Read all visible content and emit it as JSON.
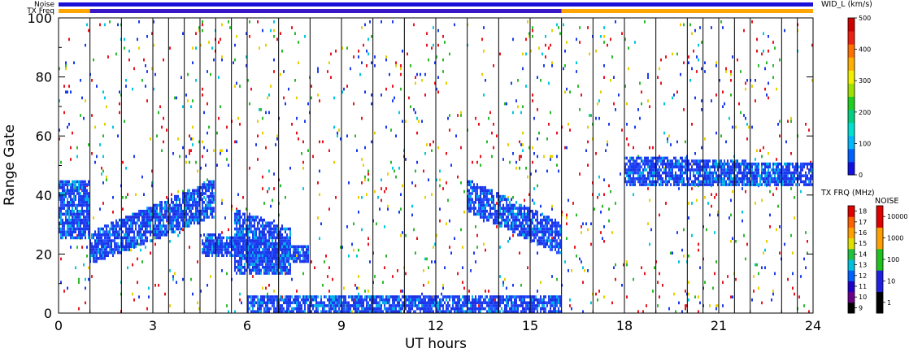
{
  "chart_data": {
    "type": "heatmap",
    "xlabel": "UT hours",
    "ylabel": "Range Gate",
    "xlim": [
      0,
      24
    ],
    "ylim": [
      0,
      100
    ],
    "x_ticks": [
      "0",
      "3",
      "6",
      "9",
      "12",
      "15",
      "18",
      "21",
      "24"
    ],
    "x_tick_values": [
      0,
      3,
      6,
      9,
      12,
      15,
      18,
      21,
      24
    ],
    "y_ticks": [
      "0",
      "20",
      "40",
      "60",
      "80",
      "100"
    ],
    "y_tick_values": [
      0,
      20,
      40,
      60,
      80,
      100
    ],
    "top_bars": {
      "noise_label": "Noise",
      "txfreq_label": "TX Freq",
      "noise_color": "#1a10d8",
      "txfreq_segments": [
        {
          "start": 0,
          "end": 1,
          "color": "#ffa500"
        },
        {
          "start": 1,
          "end": 16,
          "color": "#3a16c8"
        },
        {
          "start": 16,
          "end": 24,
          "color": "#ffa500"
        }
      ]
    },
    "scan_boundaries_hours": [
      1,
      2,
      3,
      3.5,
      4,
      4.5,
      5,
      5.5,
      6,
      7,
      8,
      9,
      10,
      11,
      12,
      13,
      14,
      15,
      16,
      17,
      18,
      19,
      20,
      20.5,
      21,
      21.5,
      22,
      23,
      23.5
    ],
    "echo_regions": [
      {
        "name": "early-band",
        "x_start": 0,
        "x_end": 1.0,
        "y_low_start": 25,
        "y_low_end": 25,
        "y_high_start": 45,
        "y_high_end": 45,
        "value": 40
      },
      {
        "name": "rising-band",
        "x_start": 1.0,
        "x_end": 5.0,
        "y_low_start": 17,
        "y_low_end": 33,
        "y_high_start": 27,
        "y_high_end": 45,
        "value": 40
      },
      {
        "name": "mid-blob",
        "x_start": 4.6,
        "x_end": 8.0,
        "y_low_start": 20,
        "y_low_end": 17,
        "y_high_start": 27,
        "y_high_end": 22,
        "value": 40
      },
      {
        "name": "mid-blob-core",
        "x_start": 5.6,
        "x_end": 7.4,
        "y_low_start": 13,
        "y_low_end": 14,
        "y_high_start": 35,
        "y_high_end": 28,
        "value": 40
      },
      {
        "name": "afternoon-band",
        "x_start": 13.0,
        "x_end": 16.0,
        "y_low_start": 35,
        "y_low_end": 20,
        "y_high_start": 45,
        "y_high_end": 30,
        "value": 40
      },
      {
        "name": "evening-band",
        "x_start": 18.0,
        "x_end": 24.0,
        "y_low_start": 43,
        "y_low_end": 43,
        "y_high_start": 53,
        "y_high_end": 50,
        "value": 40
      },
      {
        "name": "ground-scatter",
        "x_start": 6.0,
        "x_end": 16.0,
        "y_low_start": 0,
        "y_low_end": 0,
        "y_high_start": 6,
        "y_high_end": 6,
        "value": 20
      }
    ],
    "scatter_density": 0.05,
    "colorbars": [
      {
        "title": "WID_L (km/s)",
        "ticks": [
          "0",
          "100",
          "200",
          "300",
          "400",
          "500"
        ],
        "range": [
          0,
          500
        ]
      },
      {
        "title": "TX FRQ (MHz)",
        "ticks": [
          "9",
          "10",
          "11",
          "12",
          "13",
          "14",
          "15",
          "16",
          "17",
          "18"
        ],
        "range": [
          9,
          18
        ]
      },
      {
        "title": "NOISE",
        "ticks": [
          "1",
          "10",
          "100",
          "1000",
          "10000"
        ],
        "range": [
          1,
          10000
        ]
      }
    ]
  }
}
